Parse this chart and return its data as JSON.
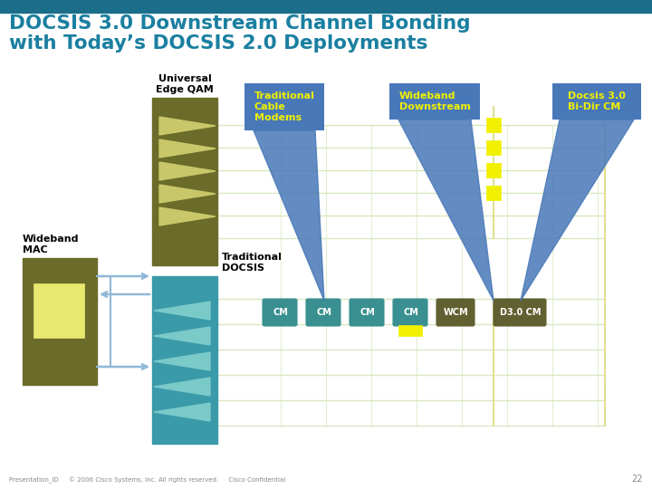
{
  "title_line1": "DOCSIS 3.0 Downstream Channel Bonding",
  "title_line2": "with Today’s DOCSIS 2.0 Deployments",
  "title_color": "#1a7fa0",
  "title_bar_color": "#1a6e8a",
  "bg_color": "#ffffff",
  "olive_color": "#6b6b2a",
  "olive_tri_color": "#c8c86a",
  "teal_color": "#3a9aaa",
  "teal_tri_color": "#7acaca",
  "yellow_color": "#f0f000",
  "light_blue_color": "#90b8d8",
  "blue_callout_color": "#4878b8",
  "grid_h_color": "#d8e8c0",
  "grid_yellow_color": "#e0e090",
  "footer_text": "Presentation_ID     © 2006 Cisco Systems, Inc. All rights reserved.     Cisco Confidential",
  "page_num": "22",
  "labels": {
    "universal_edge": "Universal\nEdge QAM",
    "wideband_mac": "Wideband\nMAC",
    "traditional_docsis": "Traditional\nDOCSIS",
    "traditional_cable": "Traditional\nCable\nModems",
    "wideband_downstream": "Wideband\nDownstream",
    "docsis30": "Docsis 3.0\nBi-Dir CM",
    "cm": "CM",
    "wcm": "WCM",
    "d30cm": "D3.0 CM"
  }
}
